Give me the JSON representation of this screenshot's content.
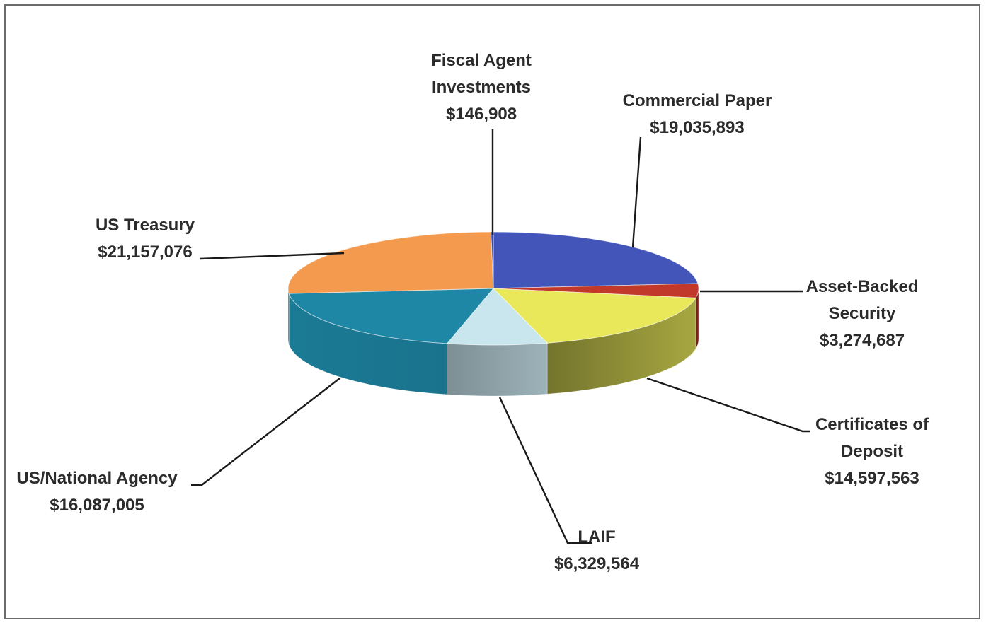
{
  "chart_data": {
    "type": "pie",
    "title": "",
    "slices": [
      {
        "key": "commercial_paper",
        "name_lines": [
          "Commercial Paper"
        ],
        "value": 19035893,
        "value_label": "$19,035,893",
        "color": "#4355b8"
      },
      {
        "key": "asset_backed",
        "name_lines": [
          "Asset-Backed",
          "Security"
        ],
        "value": 3274687,
        "value_label": "$3,274,687",
        "color": "#c0392b"
      },
      {
        "key": "certificates",
        "name_lines": [
          "Certificates of",
          "Deposit"
        ],
        "value": 14597563,
        "value_label": "$14,597,563",
        "color": "#e8e85a"
      },
      {
        "key": "laif",
        "name_lines": [
          "LAIF"
        ],
        "value": 6329564,
        "value_label": "$6,329,564",
        "color": "#c9e6ee"
      },
      {
        "key": "us_national_agency",
        "name_lines": [
          "US/National Agency"
        ],
        "value": 16087005,
        "value_label": "$16,087,005",
        "color": "#1e87a6"
      },
      {
        "key": "us_treasury",
        "name_lines": [
          "US Treasury"
        ],
        "value": 21157076,
        "value_label": "$21,157,076",
        "color": "#f39a4f"
      },
      {
        "key": "fiscal_agent",
        "name_lines": [
          "Fiscal Agent",
          "Investments"
        ],
        "value": 146908,
        "value_label": "$146,908",
        "color": "#3a4bb0"
      }
    ],
    "legend": "none",
    "data_labels": "outside-with-leader-lines"
  }
}
